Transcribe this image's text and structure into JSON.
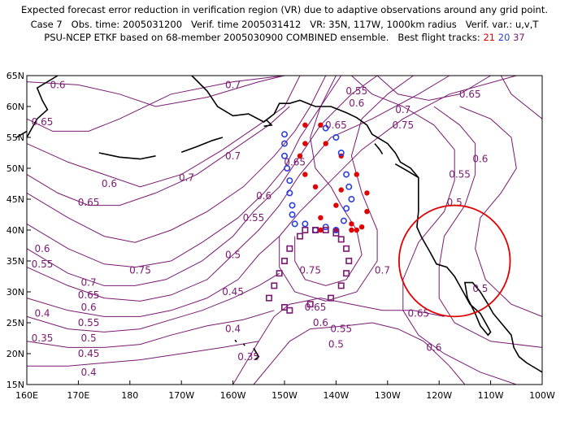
{
  "title": {
    "line1": "Expected forecast error reduction in verification region (VR) due to adaptive observations around any grid point.",
    "line2": "Case 7   Obs. time: 2005031200   Verif. time 2005031412   VR: 35N, 117W, 1000km radius   Verif. var.: u,v,T",
    "line3_prefix": "PSU-NCEP ETKF based on 68-member 2005030900 COMBINED ensemble.   Best flight tracks: ",
    "track_21": "21",
    "track_20": "20",
    "track_37": "37"
  },
  "axes": {
    "lon_labels": [
      "160E",
      "170E",
      "180",
      "170W",
      "160W",
      "150W",
      "140W",
      "130W",
      "120W",
      "110W",
      "100W"
    ],
    "lat_labels": [
      "15N",
      "20N",
      "25N",
      "30N",
      "35N",
      "40N",
      "45N",
      "50N",
      "55N",
      "60N",
      "65N"
    ]
  },
  "colors": {
    "contour": "#7a1a72",
    "track_21": "#e00000",
    "track_20": "#2a3fe0",
    "track_37": "#7a1a72",
    "verification_circle": "#e00000",
    "coast": "#000000"
  },
  "contour_labels": [
    {
      "text": "0.6",
      "lon": 166,
      "lat": 63.5
    },
    {
      "text": "0.7",
      "lon": -160,
      "lat": 63.5
    },
    {
      "text": "0.55",
      "lon": -136,
      "lat": 62.5
    },
    {
      "text": "0.65",
      "lon": -114,
      "lat": 62
    },
    {
      "text": "0.6",
      "lon": -136,
      "lat": 60.5
    },
    {
      "text": "0.7",
      "lon": -127,
      "lat": 59.5
    },
    {
      "text": "0.65",
      "lon": 163,
      "lat": 57.5
    },
    {
      "text": "0.65",
      "lon": -140,
      "lat": 57
    },
    {
      "text": "0.75",
      "lon": -127,
      "lat": 57
    },
    {
      "text": "0.7",
      "lon": -160,
      "lat": 52
    },
    {
      "text": "0.65",
      "lon": -148,
      "lat": 51
    },
    {
      "text": "0.6",
      "lon": -112,
      "lat": 51.5
    },
    {
      "text": "0.55",
      "lon": -116,
      "lat": 49
    },
    {
      "text": "0.6",
      "lon": 176,
      "lat": 47.5
    },
    {
      "text": "0.7",
      "lon": -169,
      "lat": 48.5
    },
    {
      "text": "0.6",
      "lon": -154,
      "lat": 45.5
    },
    {
      "text": "0.65",
      "lon": 172,
      "lat": 44.5
    },
    {
      "text": "0.5",
      "lon": -117,
      "lat": 44.5
    },
    {
      "text": "0.55",
      "lon": -156,
      "lat": 42
    },
    {
      "text": "0.6",
      "lon": 163,
      "lat": 37
    },
    {
      "text": "0.55",
      "lon": 163,
      "lat": 34.5
    },
    {
      "text": "0.5",
      "lon": -160,
      "lat": 36
    },
    {
      "text": "0.75",
      "lon": -178,
      "lat": 33.5
    },
    {
      "text": "0.75",
      "lon": -145,
      "lat": 33.5
    },
    {
      "text": "0.7",
      "lon": -131,
      "lat": 33.5
    },
    {
      "text": "0.7",
      "lon": 172,
      "lat": 31.5
    },
    {
      "text": "0.45",
      "lon": -160,
      "lat": 30
    },
    {
      "text": "0.5",
      "lon": -112,
      "lat": 30.5
    },
    {
      "text": "0.65",
      "lon": 172,
      "lat": 29.5
    },
    {
      "text": "0.6",
      "lon": 172,
      "lat": 27.5
    },
    {
      "text": "0.65",
      "lon": -144,
      "lat": 27.5
    },
    {
      "text": "0.65",
      "lon": -124,
      "lat": 26.5
    },
    {
      "text": "0.55",
      "lon": 172,
      "lat": 25
    },
    {
      "text": "0.6",
      "lon": -143,
      "lat": 25
    },
    {
      "text": "0.4",
      "lon": 163,
      "lat": 26.5
    },
    {
      "text": "0.55",
      "lon": -139,
      "lat": 24
    },
    {
      "text": "0.5",
      "lon": 172,
      "lat": 22.5
    },
    {
      "text": "0.4",
      "lon": -160,
      "lat": 24
    },
    {
      "text": "0.35",
      "lon": 163,
      "lat": 22.5
    },
    {
      "text": "0.5",
      "lon": -140,
      "lat": 21.5
    },
    {
      "text": "0.6",
      "lon": -121,
      "lat": 21
    },
    {
      "text": "0.45",
      "lon": 172,
      "lat": 20
    },
    {
      "text": "0.35",
      "lon": -157,
      "lat": 19.5
    },
    {
      "text": "0.4",
      "lon": 172,
      "lat": 17
    }
  ],
  "tracks": {
    "track_21": [
      [
        -146,
        57
      ],
      [
        -143,
        57
      ],
      [
        -146,
        54
      ],
      [
        -142,
        54
      ],
      [
        -147,
        52
      ],
      [
        -139,
        52
      ],
      [
        -146,
        49
      ],
      [
        -136,
        49
      ],
      [
        -144,
        47
      ],
      [
        -139,
        46.5
      ],
      [
        -134,
        46
      ],
      [
        -140,
        44
      ],
      [
        -134,
        43
      ],
      [
        -143,
        42
      ],
      [
        -137,
        41
      ],
      [
        -135,
        40.5
      ],
      [
        -143,
        40
      ],
      [
        -140,
        40
      ],
      [
        -137,
        40
      ],
      [
        -136,
        40
      ]
    ],
    "track_20": [
      [
        -150,
        55.5
      ],
      [
        -142,
        56.5
      ],
      [
        -150,
        54
      ],
      [
        -140,
        55
      ],
      [
        -150,
        52
      ],
      [
        -139,
        52.5
      ],
      [
        -149.5,
        50
      ],
      [
        -138,
        49
      ],
      [
        -149,
        48
      ],
      [
        -137.5,
        47
      ],
      [
        -149,
        46
      ],
      [
        -137,
        45
      ],
      [
        -148.5,
        44
      ],
      [
        -138,
        43.5
      ],
      [
        -148.5,
        42.5
      ],
      [
        -138.5,
        41.5
      ],
      [
        -148,
        41
      ],
      [
        -146,
        41
      ],
      [
        -144,
        40
      ],
      [
        -142,
        40.5
      ],
      [
        -140,
        40
      ]
    ],
    "track_37": [
      [
        -146,
        40
      ],
      [
        -144,
        40
      ],
      [
        -142,
        40
      ],
      [
        -140,
        39.5
      ],
      [
        -147,
        39
      ],
      [
        -139,
        38.5
      ],
      [
        -149,
        37
      ],
      [
        -138,
        37
      ],
      [
        -150,
        35
      ],
      [
        -137.5,
        35
      ],
      [
        -151,
        33
      ],
      [
        -138,
        33
      ],
      [
        -152,
        31
      ],
      [
        -139,
        31
      ],
      [
        -153,
        29
      ],
      [
        -141,
        29
      ],
      [
        -150,
        27.5
      ],
      [
        -145,
        28
      ],
      [
        -149,
        27
      ]
    ]
  },
  "verification_region": {
    "lat": 35,
    "lon": -117,
    "radius_km": 1000
  }
}
